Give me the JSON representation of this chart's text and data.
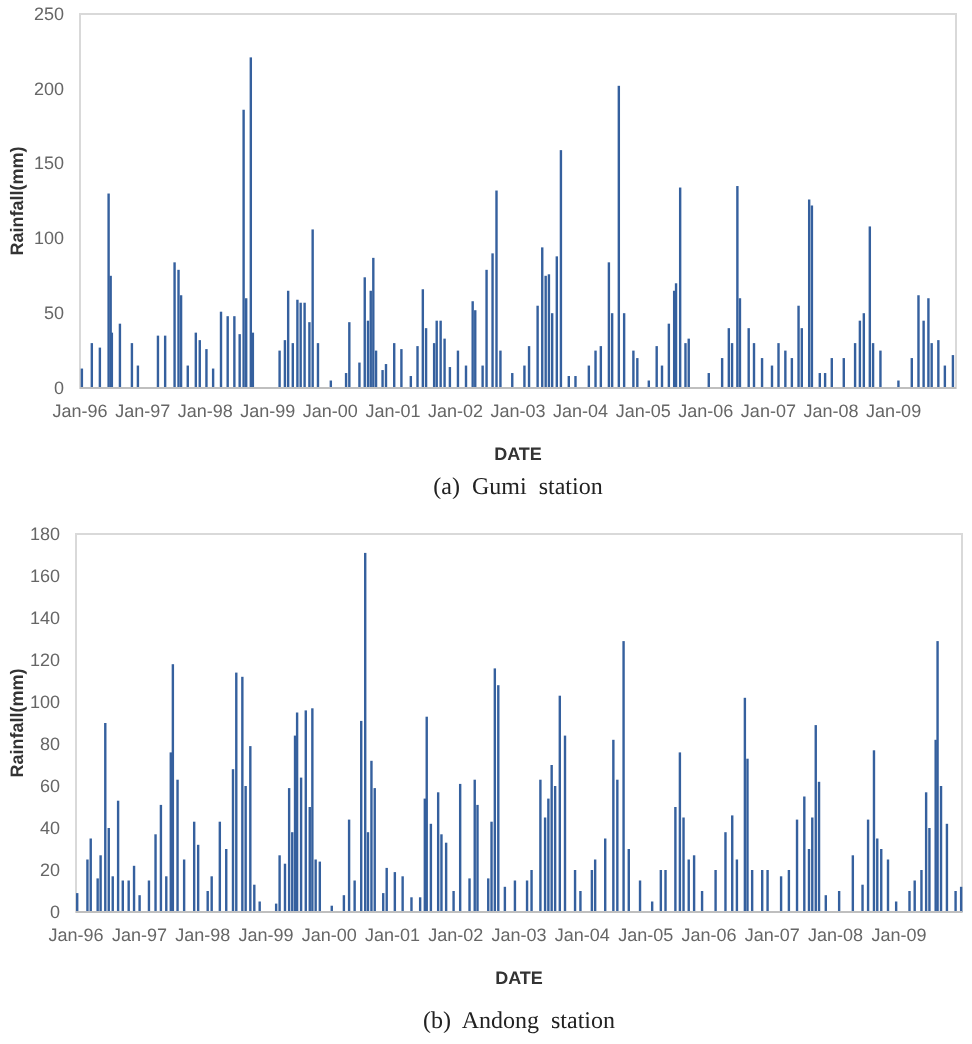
{
  "chart_data": [
    {
      "type": "bar",
      "title": "(a)  Gumi  station",
      "xlabel": "DATE",
      "ylabel": "Rainfall(mm)",
      "color": "#35609e",
      "x": [
        "1996-01-12",
        "1996-03-10",
        "1996-04-26",
        "1996-06-16",
        "1996-06-28",
        "1996-07-05",
        "1996-08-21",
        "1996-10-30",
        "1996-12-04",
        "1997-03-31",
        "1997-05-12",
        "1997-07-06",
        "1997-07-29",
        "1997-08-13",
        "1997-09-21",
        "1997-11-07",
        "1997-11-30",
        "1998-01-08",
        "1998-02-16",
        "1998-04-03",
        "1998-05-12",
        "1998-06-20",
        "1998-07-21",
        "1998-08-13",
        "1998-08-28",
        "1998-09-24",
        "1998-10-06",
        "1999-03-11",
        "1999-04-11",
        "1999-04-30",
        "1999-05-27",
        "1999-06-23",
        "1999-07-12",
        "1999-08-04",
        "1999-09-01",
        "1999-09-20",
        "1999-10-21",
        "2000-01-04",
        "2000-04-02",
        "2000-04-21",
        "2000-06-19",
        "2000-07-20",
        "2000-08-08",
        "2000-08-24",
        "2000-09-08",
        "2000-09-24",
        "2000-11-01",
        "2000-11-21",
        "2001-01-08",
        "2001-02-19",
        "2001-04-15",
        "2001-05-24",
        "2001-06-24",
        "2001-07-13",
        "2001-08-29",
        "2001-09-13",
        "2001-10-06",
        "2001-10-29",
        "2001-11-29",
        "2002-01-15",
        "2002-03-03",
        "2002-04-11",
        "2002-04-26",
        "2002-06-08",
        "2002-07-01",
        "2002-08-05",
        "2002-08-28",
        "2002-09-20",
        "2002-11-28",
        "2003-02-07",
        "2003-03-06",
        "2003-04-25",
        "2003-05-22",
        "2003-06-11",
        "2003-06-30",
        "2003-07-19",
        "2003-08-15",
        "2003-09-08",
        "2003-10-24",
        "2003-12-02",
        "2004-02-18",
        "2004-03-28",
        "2004-04-28",
        "2004-06-14",
        "2004-07-03",
        "2004-08-11",
        "2004-09-11",
        "2004-11-04",
        "2004-11-27",
        "2005-02-02",
        "2005-03-20",
        "2005-04-20",
        "2005-05-30",
        "2005-06-30",
        "2005-07-11",
        "2005-08-04",
        "2005-09-04",
        "2005-09-23",
        "2006-01-18",
        "2006-04-06",
        "2006-05-15",
        "2006-06-03",
        "2006-07-04",
        "2006-07-19",
        "2006-09-08",
        "2006-10-09",
        "2006-11-25",
        "2007-01-22",
        "2007-03-01",
        "2007-04-10",
        "2007-05-18",
        "2007-06-26",
        "2007-07-15",
        "2007-08-27",
        "2007-09-12",
        "2007-10-28",
        "2007-11-28",
        "2008-01-06",
        "2008-03-16",
        "2008-05-21",
        "2008-06-18",
        "2008-07-11",
        "2008-08-15",
        "2008-09-03",
        "2008-10-16",
        "2009-01-29",
        "2009-04-17",
        "2009-05-26",
        "2009-06-25",
        "2009-07-23",
        "2009-08-11",
        "2009-09-19",
        "2009-10-27",
        "2009-12-13"
      ],
      "values": [
        13,
        30,
        27,
        130,
        75,
        37,
        43,
        30,
        15,
        35,
        35,
        84,
        79,
        62,
        15,
        37,
        32,
        26,
        13,
        51,
        48,
        48,
        36,
        186,
        60,
        221,
        37,
        25,
        32,
        65,
        30,
        59,
        57,
        57,
        44,
        106,
        30,
        5,
        10,
        44,
        17,
        74,
        45,
        65,
        87,
        25,
        12,
        16,
        30,
        26,
        8,
        28,
        66,
        40,
        30,
        45,
        45,
        33,
        14,
        25,
        15,
        58,
        52,
        15,
        79,
        90,
        132,
        25,
        10,
        15,
        28,
        55,
        94,
        75,
        76,
        50,
        88,
        159,
        8,
        8,
        15,
        25,
        28,
        84,
        50,
        202,
        50,
        25,
        20,
        5,
        28,
        15,
        43,
        65,
        70,
        134,
        30,
        33,
        10,
        20,
        40,
        30,
        135,
        60,
        40,
        30,
        20,
        15,
        30,
        25,
        20,
        55,
        40,
        126,
        122,
        10,
        10,
        20,
        20,
        30,
        45,
        50,
        108,
        30,
        25,
        5,
        20,
        62,
        45,
        60,
        30,
        32,
        15,
        22
      ],
      "xlim": [
        "1996-01-01",
        "2009-12-31"
      ],
      "xticks": [
        {
          "value": "1996-01-01",
          "label": "Jan-96"
        },
        {
          "value": "1997-01-01",
          "label": "Jan-97"
        },
        {
          "value": "1998-01-01",
          "label": "Jan-98"
        },
        {
          "value": "1999-01-01",
          "label": "Jan-99"
        },
        {
          "value": "2000-01-01",
          "label": "Jan-00"
        },
        {
          "value": "2001-01-01",
          "label": "Jan-01"
        },
        {
          "value": "2002-01-01",
          "label": "Jan-02"
        },
        {
          "value": "2003-01-01",
          "label": "Jan-03"
        },
        {
          "value": "2004-01-01",
          "label": "Jan-04"
        },
        {
          "value": "2005-01-01",
          "label": "Jan-05"
        },
        {
          "value": "2006-01-01",
          "label": "Jan-06"
        },
        {
          "value": "2007-01-01",
          "label": "Jan-07"
        },
        {
          "value": "2008-01-01",
          "label": "Jan-08"
        },
        {
          "value": "2009-01-01",
          "label": "Jan-09"
        }
      ],
      "ylim": [
        0,
        250
      ],
      "yticks": [
        0,
        50,
        100,
        150,
        200,
        250
      ]
    },
    {
      "type": "bar",
      "title": "(b)  Andong  station",
      "xlabel": "DATE",
      "ylabel": "Rainfall(mm)",
      "color": "#35609e",
      "x": [
        "1996-01-08",
        "1996-03-07",
        "1996-03-26",
        "1996-05-05",
        "1996-05-22",
        "1996-06-18",
        "1996-07-08",
        "1996-07-31",
        "1996-08-31",
        "1996-09-27",
        "1996-10-31",
        "1996-12-01",
        "1997-01-02",
        "1997-02-25",
        "1997-04-04",
        "1997-05-05",
        "1997-06-05",
        "1997-07-01",
        "1997-07-13",
        "1997-08-09",
        "1997-09-16",
        "1997-11-13",
        "1997-12-06",
        "1998-01-30",
        "1998-02-22",
        "1998-04-10",
        "1998-05-17",
        "1998-06-25",
        "1998-07-14",
        "1998-08-18",
        "1998-09-06",
        "1998-10-03",
        "1998-10-26",
        "1998-11-26",
        "1999-03-01",
        "1999-03-21",
        "1999-04-21",
        "1999-05-15",
        "1999-06-02",
        "1999-06-18",
        "1999-06-30",
        "1999-07-23",
        "1999-08-19",
        "1999-09-11",
        "1999-09-26",
        "1999-10-15",
        "1999-11-08",
        "2000-01-16",
        "2000-03-26",
        "2000-04-25",
        "2000-05-27",
        "2000-07-04",
        "2000-07-27",
        "2000-08-12",
        "2000-09-01",
        "2000-09-20",
        "2000-11-08",
        "2000-11-28",
        "2001-01-14",
        "2001-02-28",
        "2001-04-20",
        "2001-06-09",
        "2001-07-06",
        "2001-07-17",
        "2001-08-10",
        "2001-09-21",
        "2001-10-10",
        "2001-11-06",
        "2001-12-19",
        "2002-01-26",
        "2002-03-21",
        "2002-04-20",
        "2002-05-06",
        "2002-07-07",
        "2002-07-26",
        "2002-08-14",
        "2002-09-03",
        "2002-10-11",
        "2002-12-08",
        "2003-02-16",
        "2003-03-14",
        "2003-05-04",
        "2003-05-31",
        "2003-06-19",
        "2003-07-08",
        "2003-07-28",
        "2003-08-24",
        "2003-09-23",
        "2003-11-20",
        "2003-12-21",
        "2004-02-25",
        "2004-03-15",
        "2004-05-12",
        "2004-06-28",
        "2004-07-21",
        "2004-08-26",
        "2004-09-25",
        "2004-11-29",
        "2005-02-07",
        "2005-03-29",
        "2005-04-25",
        "2005-06-21",
        "2005-07-17",
        "2005-08-07",
        "2005-09-06",
        "2005-10-07",
        "2005-11-22",
        "2006-02-08",
        "2006-04-06",
        "2006-05-15",
        "2006-06-11",
        "2006-07-27",
        "2006-08-11",
        "2006-09-07",
        "2006-11-04",
        "2006-12-05",
        "2007-02-21",
        "2007-04-07",
        "2007-05-24",
        "2007-07-05",
        "2007-08-01",
        "2007-08-20",
        "2007-09-09",
        "2007-09-28",
        "2007-11-06",
        "2008-01-22",
        "2008-04-10",
        "2008-06-05",
        "2008-07-07",
        "2008-08-10",
        "2008-08-29",
        "2008-09-21",
        "2008-10-30",
        "2008-12-16",
        "2009-03-03",
        "2009-04-02",
        "2009-05-11",
        "2009-06-07",
        "2009-06-26",
        "2009-08-01",
        "2009-08-12",
        "2009-09-01",
        "2009-10-05",
        "2009-11-24",
        "2009-12-26"
      ],
      "values": [
        9,
        25,
        35,
        16,
        27,
        90,
        40,
        17,
        53,
        15,
        15,
        22,
        8,
        15,
        37,
        51,
        17,
        76,
        118,
        63,
        25,
        43,
        32,
        10,
        17,
        43,
        30,
        68,
        114,
        112,
        60,
        79,
        13,
        5,
        4,
        27,
        23,
        59,
        38,
        84,
        95,
        64,
        96,
        50,
        97,
        25,
        24,
        3,
        8,
        44,
        15,
        91,
        171,
        38,
        72,
        59,
        9,
        21,
        19,
        17,
        7,
        7,
        54,
        93,
        42,
        57,
        37,
        33,
        10,
        61,
        16,
        63,
        51,
        16,
        43,
        116,
        108,
        12,
        15,
        15,
        20,
        63,
        45,
        54,
        70,
        60,
        103,
        84,
        20,
        10,
        20,
        25,
        35,
        82,
        63,
        129,
        30,
        15,
        5,
        20,
        20,
        50,
        76,
        45,
        25,
        27,
        10,
        20,
        38,
        46,
        25,
        102,
        73,
        20,
        20,
        20,
        17,
        20,
        44,
        55,
        30,
        45,
        89,
        62,
        8,
        10,
        27,
        13,
        44,
        77,
        35,
        30,
        25,
        5,
        10,
        15,
        20,
        57,
        40,
        82,
        129,
        60,
        42,
        10,
        12
      ],
      "xlim": [
        "1996-01-01",
        "2009-12-31"
      ],
      "xticks": [
        {
          "value": "1996-01-01",
          "label": "Jan-96"
        },
        {
          "value": "1997-01-01",
          "label": "Jan-97"
        },
        {
          "value": "1998-01-01",
          "label": "Jan-98"
        },
        {
          "value": "1999-01-01",
          "label": "Jan-99"
        },
        {
          "value": "2000-01-01",
          "label": "Jan-00"
        },
        {
          "value": "2001-01-01",
          "label": "Jan-01"
        },
        {
          "value": "2002-01-01",
          "label": "Jan-02"
        },
        {
          "value": "2003-01-01",
          "label": "Jan-03"
        },
        {
          "value": "2004-01-01",
          "label": "Jan-04"
        },
        {
          "value": "2005-01-01",
          "label": "Jan-05"
        },
        {
          "value": "2006-01-01",
          "label": "Jan-06"
        },
        {
          "value": "2007-01-01",
          "label": "Jan-07"
        },
        {
          "value": "2008-01-01",
          "label": "Jan-08"
        },
        {
          "value": "2009-01-01",
          "label": "Jan-09"
        }
      ],
      "ylim": [
        0,
        180
      ],
      "yticks": [
        0,
        20,
        40,
        60,
        80,
        100,
        120,
        140,
        160,
        180
      ]
    }
  ]
}
